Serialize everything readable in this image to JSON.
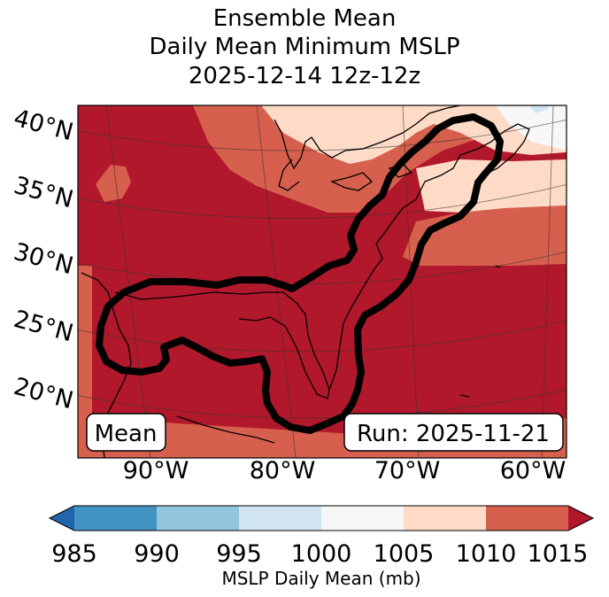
{
  "title": {
    "line1": "Ensemble Mean",
    "line2": "Daily Mean Minimum MSLP",
    "line3": "2025-12-14 12z-12z"
  },
  "map": {
    "lat_labels": [
      "40°N",
      "35°N",
      "30°N",
      "25°N",
      "20°N"
    ],
    "lon_labels": [
      "90°W",
      "80°W",
      "70°W",
      "60°W"
    ],
    "mean_label": "Mean",
    "run_label": "Run: 2025-11-21"
  },
  "colorbar": {
    "ticks": [
      "985",
      "990",
      "995",
      "1000",
      "1005",
      "1010",
      "1015"
    ],
    "label": "MSLP Daily Mean (mb)",
    "colors": {
      "below": "#2166ac",
      "c985_990": "#4393c3",
      "c990_995": "#92c5de",
      "c995_1000": "#d1e5f0",
      "c1000_1005": "#f7f7f7",
      "c1005_1010": "#fddbc7",
      "c1010_1015": "#d6604d",
      "above": "#b2182b"
    }
  }
}
